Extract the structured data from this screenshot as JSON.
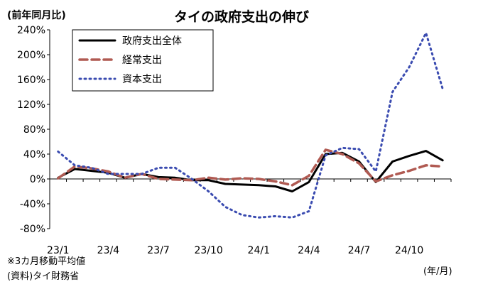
{
  "chart_data": {
    "type": "line",
    "title": "タイの政府支出の伸び",
    "ylabel": "(前年同月比)",
    "xlabel": "(年/月)",
    "ylim": [
      -80,
      240
    ],
    "y_ticks": [
      -80,
      -40,
      0,
      40,
      80,
      120,
      160,
      200,
      240
    ],
    "y_tick_labels": [
      "-80%",
      "-40%",
      "0%",
      "40%",
      "80%",
      "120%",
      "160%",
      "200%",
      "240%"
    ],
    "x_tick_labels": [
      {
        "label": "23/1",
        "index": 0
      },
      {
        "label": "23/4",
        "index": 3
      },
      {
        "label": "23/7",
        "index": 6
      },
      {
        "label": "23/10",
        "index": 9
      },
      {
        "label": "24/1",
        "index": 12
      },
      {
        "label": "24/4",
        "index": 15
      },
      {
        "label": "24/7",
        "index": 18
      },
      {
        "label": "24/10",
        "index": 21
      }
    ],
    "grid": false,
    "legend_position": "top-left",
    "series": [
      {
        "name": "政府支出全体",
        "color": "#000000",
        "style": "solid",
        "values": [
          2,
          16,
          13,
          10,
          2,
          8,
          3,
          2,
          -2,
          -2,
          -8,
          -9,
          -10,
          -12,
          -20,
          -5,
          40,
          42,
          28,
          -5,
          28,
          37,
          45,
          30
        ]
      },
      {
        "name": "経常支出",
        "color": "#b05a52",
        "style": "dashed",
        "values": [
          1,
          20,
          17,
          12,
          2,
          8,
          0,
          -1,
          -2,
          2,
          -1,
          1,
          0,
          -4,
          -10,
          5,
          47,
          40,
          25,
          -4,
          6,
          13,
          22,
          20
        ]
      },
      {
        "name": "資本支出",
        "color": "#3a4bb0",
        "style": "dotted",
        "values": [
          44,
          22,
          18,
          8,
          8,
          8,
          18,
          18,
          0,
          -20,
          -45,
          -58,
          -62,
          -60,
          -62,
          -52,
          38,
          50,
          48,
          12,
          140,
          180,
          235,
          145
        ]
      }
    ],
    "annotations": [
      "※3カ月移動平均値",
      "(資料)タイ財務省"
    ]
  }
}
